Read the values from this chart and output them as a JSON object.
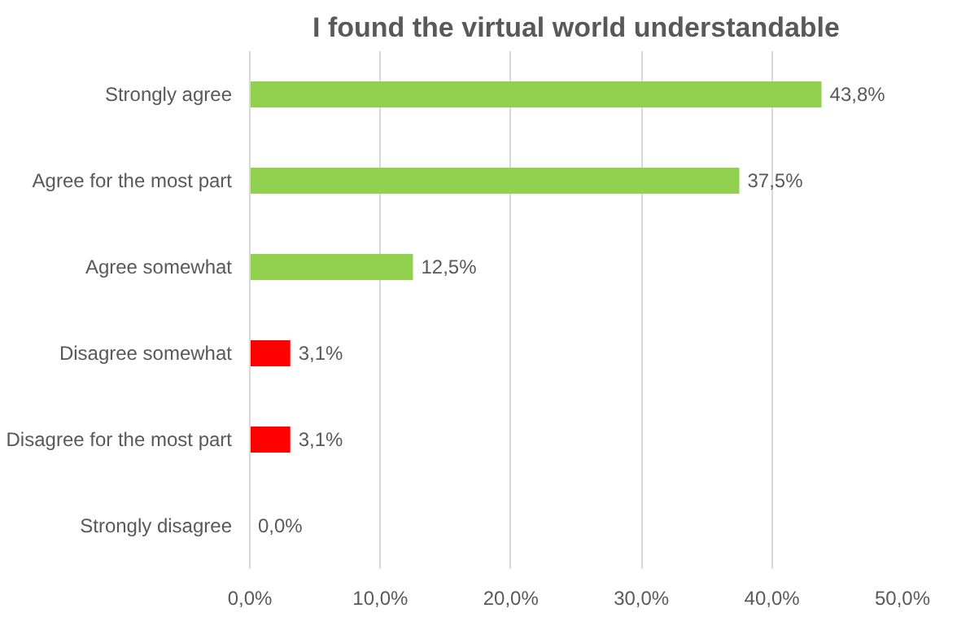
{
  "chart_data": {
    "type": "bar",
    "orientation": "horizontal",
    "title": "I found the virtual world understandable",
    "categories": [
      "Strongly agree",
      "Agree for the most part",
      "Agree somewhat",
      "Disagree somewhat",
      "Disagree for the most part",
      "Strongly disagree"
    ],
    "values": [
      43.8,
      37.5,
      12.5,
      3.1,
      3.1,
      0.0
    ],
    "colors": [
      "#92d050",
      "#92d050",
      "#92d050",
      "#ff0000",
      "#ff0000",
      "#ff0000"
    ],
    "value_labels": [
      "43,8%",
      "37,5%",
      "12,5%",
      "3,1%",
      "3,1%",
      "0,0%"
    ],
    "xlim": [
      0,
      50
    ],
    "xticks": [
      {
        "value": 0,
        "label": "0,0%"
      },
      {
        "value": 10,
        "label": "10,0%"
      },
      {
        "value": 20,
        "label": "20,0%"
      },
      {
        "value": 30,
        "label": "30,0%"
      },
      {
        "value": 40,
        "label": "40,0%"
      },
      {
        "value": 50,
        "label": "50,0%"
      }
    ],
    "grid": "x"
  }
}
